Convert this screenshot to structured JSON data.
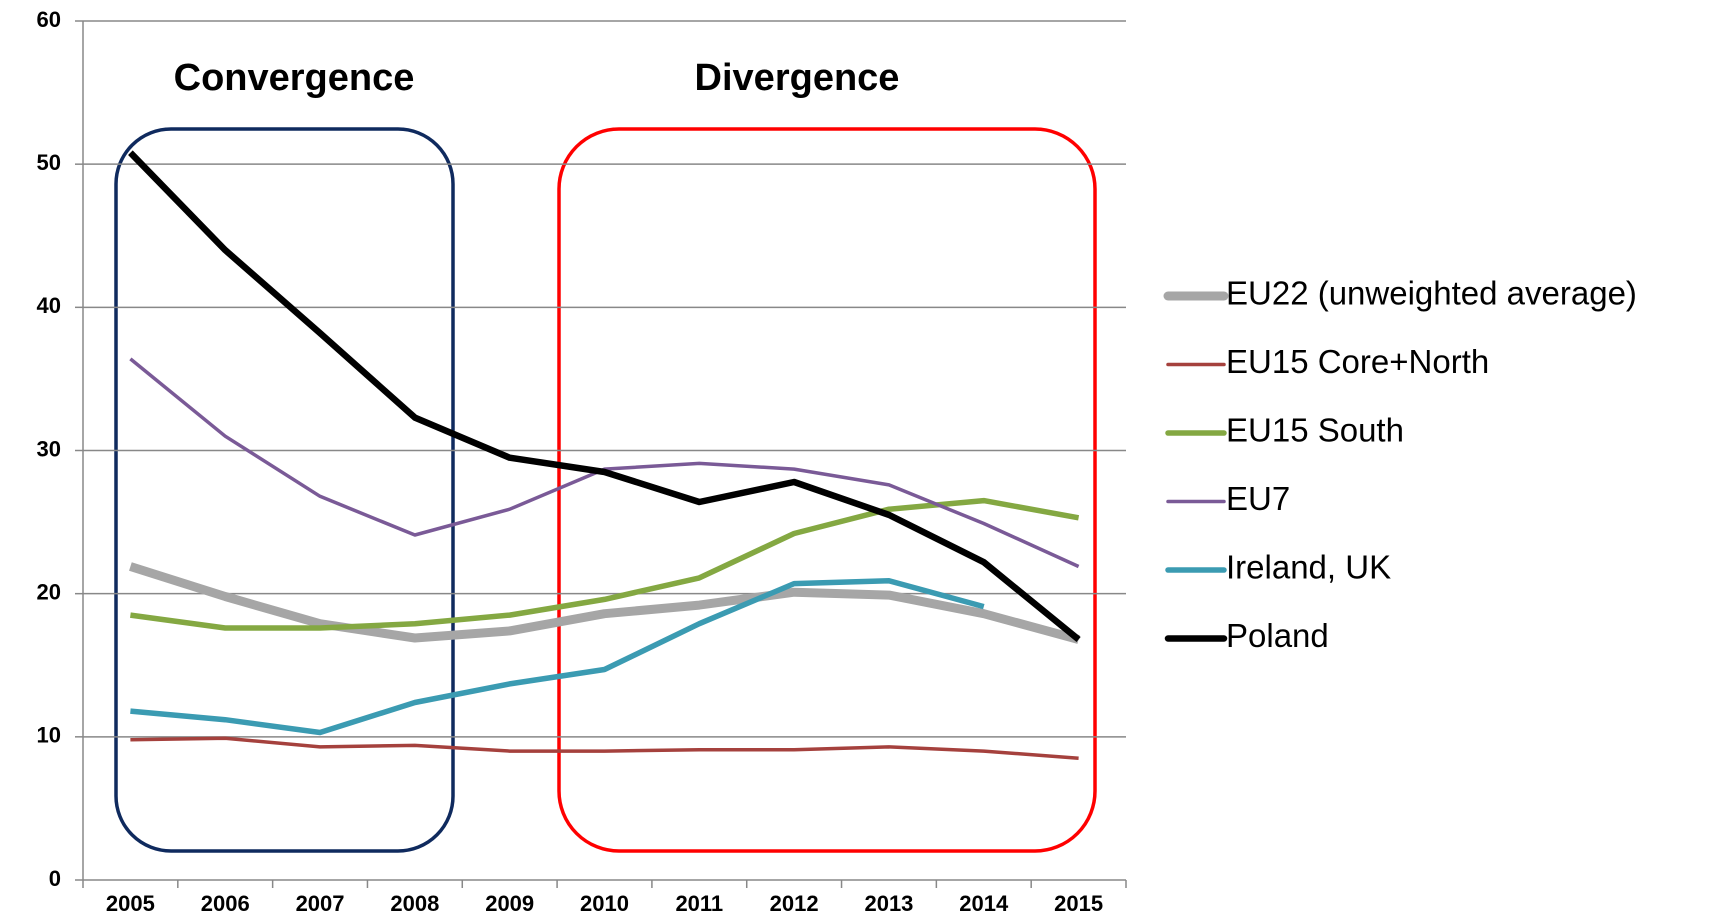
{
  "chart_data": {
    "type": "line",
    "categories": [
      "2005",
      "2006",
      "2007",
      "2008",
      "2009",
      "2010",
      "2011",
      "2012",
      "2013",
      "2014",
      "2015"
    ],
    "series": [
      {
        "name": "EU22 (unweighted average)",
        "color": "#a6a6a6",
        "values": [
          21.9,
          19.8,
          17.9,
          16.9,
          17.4,
          18.6,
          19.2,
          20.1,
          19.9,
          18.6,
          16.8
        ]
      },
      {
        "name": "EU15 Core+North",
        "color": "#a5413d",
        "values": [
          9.8,
          9.9,
          9.3,
          9.4,
          9.0,
          9.0,
          9.1,
          9.1,
          9.3,
          9.0,
          8.5
        ]
      },
      {
        "name": "EU15 South",
        "color": "#84a842",
        "values": [
          18.5,
          17.6,
          17.6,
          17.9,
          18.5,
          19.6,
          21.1,
          24.2,
          25.9,
          26.5,
          25.3
        ]
      },
      {
        "name": "EU7",
        "color": "#7a5a97",
        "values": [
          36.4,
          31.0,
          26.8,
          24.1,
          25.9,
          28.7,
          29.1,
          28.7,
          27.6,
          24.9,
          21.9
        ]
      },
      {
        "name": "Ireland, UK",
        "color": "#3b9bb2",
        "values": [
          11.8,
          11.2,
          10.3,
          12.4,
          13.7,
          14.7,
          17.9,
          20.7,
          20.9,
          19.1,
          null
        ]
      },
      {
        "name": "Poland",
        "color": "#000000",
        "values": [
          50.8,
          44.0,
          38.2,
          32.3,
          29.5,
          28.5,
          26.4,
          27.8,
          25.5,
          22.2,
          16.8
        ]
      }
    ],
    "annotations": [
      "Convergence",
      "Divergence"
    ],
    "ylim": [
      0,
      60
    ],
    "yticks": [
      0,
      10,
      20,
      30,
      40,
      50,
      60
    ],
    "grid": true,
    "legend": "right"
  }
}
